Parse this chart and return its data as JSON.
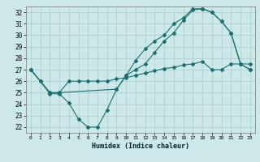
{
  "xlabel": "Humidex (Indice chaleur)",
  "ylabel": "",
  "xlim": [
    -0.5,
    23.5
  ],
  "ylim": [
    21.5,
    32.5
  ],
  "xticks": [
    0,
    1,
    2,
    3,
    4,
    5,
    6,
    7,
    8,
    9,
    10,
    11,
    12,
    13,
    14,
    15,
    16,
    17,
    18,
    19,
    20,
    21,
    22,
    23
  ],
  "yticks": [
    22,
    23,
    24,
    25,
    26,
    27,
    28,
    29,
    30,
    31,
    32
  ],
  "background_color": "#cce8e8",
  "grid_color": "#b0d0d0",
  "line_color": "#1a7070",
  "line1_x": [
    0,
    1,
    2,
    3,
    4,
    5,
    6,
    7,
    8,
    9,
    10,
    11,
    12,
    13,
    14,
    15,
    16,
    17,
    18,
    19,
    20,
    21,
    22,
    23
  ],
  "line1_y": [
    27.0,
    26.0,
    24.9,
    24.9,
    24.1,
    22.7,
    22.0,
    22.0,
    23.5,
    25.3,
    26.5,
    27.0,
    27.5,
    28.5,
    29.5,
    30.2,
    31.3,
    32.2,
    32.3,
    32.0,
    31.2,
    30.2,
    27.5,
    27.0
  ],
  "line2_x": [
    0,
    1,
    2,
    3,
    4,
    5,
    6,
    7,
    8,
    9,
    10,
    11,
    12,
    13,
    14,
    15,
    16,
    17,
    18,
    19,
    20,
    21,
    22,
    23
  ],
  "line2_y": [
    27.0,
    26.0,
    25.0,
    25.0,
    26.0,
    26.0,
    26.0,
    26.0,
    26.0,
    26.2,
    26.3,
    26.5,
    26.7,
    26.9,
    27.1,
    27.2,
    27.4,
    27.5,
    27.7,
    27.0,
    27.0,
    27.5,
    27.5,
    27.5
  ],
  "line3_x": [
    0,
    2,
    3,
    9,
    10,
    11,
    12,
    13,
    14,
    15,
    16,
    17,
    18,
    19,
    20,
    21,
    22,
    23
  ],
  "line3_y": [
    27.0,
    25.0,
    25.0,
    25.3,
    26.5,
    27.8,
    28.8,
    29.5,
    30.0,
    31.0,
    31.5,
    32.3,
    32.3,
    32.0,
    31.2,
    30.2,
    27.5,
    27.0
  ]
}
